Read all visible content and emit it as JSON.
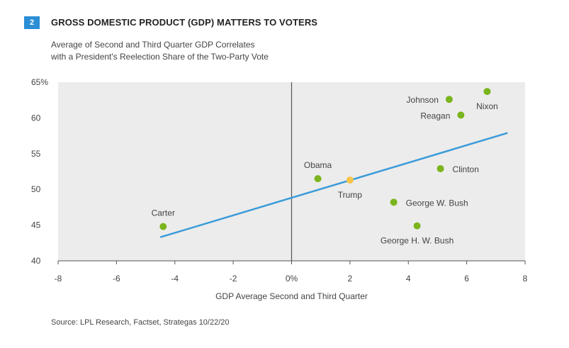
{
  "figure_number": "2",
  "title": "GROSS DOMESTIC PRODUCT (GDP) MATTERS TO VOTERS",
  "subtitle_line1": "Average of Second and Third Quarter GDP Correlates",
  "subtitle_line2": "with a President's Reelection Share of the Two-Party Vote",
  "source": "Source: LPL Research, Factset, Strategas  10/22/20",
  "colors": {
    "badge": "#2b8fd6",
    "plot_bg": "#ececec",
    "point": "#7ab51d",
    "highlight_point": "#f5c54b",
    "trend": "#3a9bd9",
    "axis": "#555555"
  },
  "chart_data": {
    "type": "scatter",
    "xlabel": "GDP Average Second and Third Quarter",
    "ylabel": "",
    "xlim": [
      -8,
      8
    ],
    "ylim": [
      40,
      65
    ],
    "x_ticks": [
      -8,
      -6,
      -4,
      -2,
      0,
      2,
      4,
      6,
      8
    ],
    "x_tick_labels": [
      "-8",
      "-6",
      "-4",
      "-2",
      "0%",
      "2",
      "4",
      "6",
      "8"
    ],
    "y_ticks": [
      40,
      45,
      50,
      55,
      60,
      65
    ],
    "y_tick_labels": [
      "40",
      "45",
      "50",
      "55",
      "60",
      "65%"
    ],
    "points": [
      {
        "label": "Carter",
        "x": -4.4,
        "y": 44.8,
        "highlight": false,
        "label_pos": "above"
      },
      {
        "label": "Obama",
        "x": 0.9,
        "y": 51.5,
        "highlight": false,
        "label_pos": "above"
      },
      {
        "label": "Trump",
        "x": 2.0,
        "y": 51.3,
        "highlight": true,
        "label_pos": "below"
      },
      {
        "label": "George W. Bush",
        "x": 3.5,
        "y": 48.2,
        "highlight": false,
        "label_pos": "right"
      },
      {
        "label": "George H. W. Bush",
        "x": 4.3,
        "y": 44.9,
        "highlight": false,
        "label_pos": "below"
      },
      {
        "label": "Clinton",
        "x": 5.1,
        "y": 52.9,
        "highlight": false,
        "label_pos": "right"
      },
      {
        "label": "Johnson",
        "x": 5.4,
        "y": 62.6,
        "highlight": false,
        "label_pos": "left"
      },
      {
        "label": "Reagan",
        "x": 5.8,
        "y": 60.4,
        "highlight": false,
        "label_pos": "left"
      },
      {
        "label": "Nixon",
        "x": 6.7,
        "y": 63.7,
        "highlight": false,
        "label_pos": "below"
      }
    ],
    "trend_line": {
      "x": [
        -4.5,
        7.4
      ],
      "y": [
        43.3,
        57.9
      ]
    }
  }
}
